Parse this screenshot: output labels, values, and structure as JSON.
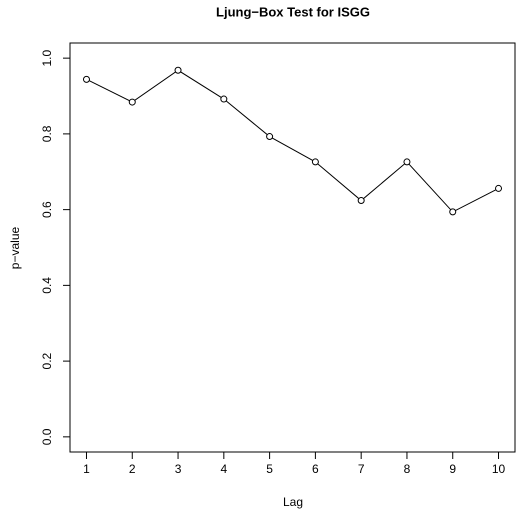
{
  "chart_data": {
    "type": "line",
    "title": "Ljung−Box Test for ISGG",
    "x_label": "Lag",
    "y_label": "p−value",
    "x": [
      1,
      2,
      3,
      4,
      5,
      6,
      7,
      8,
      9,
      10
    ],
    "series": [
      {
        "color": "#000000",
        "values": [
          0.944,
          0.884,
          0.968,
          0.892,
          0.793,
          0.726,
          0.624,
          0.726,
          0.594,
          0.656
        ]
      }
    ],
    "xlim": [
      0.64,
      10.36
    ],
    "ylim": [
      -0.04,
      1.04
    ],
    "xticks": [
      1,
      2,
      3,
      4,
      5,
      6,
      7,
      8,
      9,
      10
    ],
    "yticks": [
      {
        "value": 0,
        "label": "0.0"
      },
      {
        "value": 0.2,
        "label": "0.2"
      },
      {
        "value": 0.4,
        "label": "0.4"
      },
      {
        "value": 0.6,
        "label": "0.6"
      },
      {
        "value": 0.8,
        "label": "0.8"
      },
      {
        "value": 1,
        "label": "1.0"
      }
    ],
    "grid": false
  }
}
